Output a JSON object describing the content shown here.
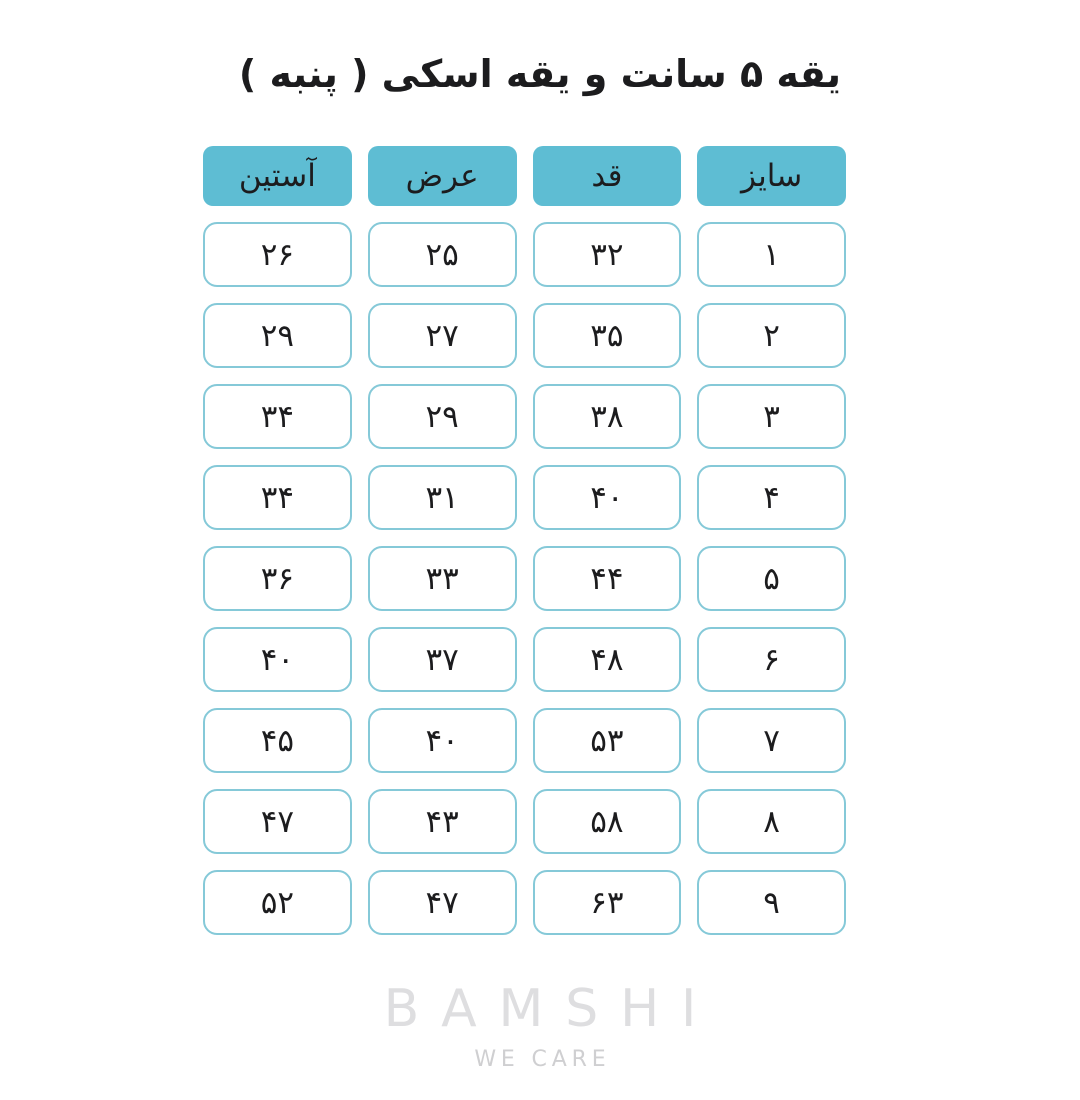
{
  "page": {
    "title": "یقه ۵ سانت و یقه اسکی ( پنبه )",
    "background_color": "#ffffff",
    "text_color": "#1c1c1e"
  },
  "table": {
    "direction": "rtl",
    "header_bg_color": "#5EBDD3",
    "cell_border_color": "#85C9D8",
    "headers": [
      {
        "key": "size",
        "label": "سایز"
      },
      {
        "key": "length",
        "label": "قد"
      },
      {
        "key": "width",
        "label": "عرض"
      },
      {
        "key": "sleeve",
        "label": "آستین"
      }
    ],
    "rows": [
      {
        "size": "۱",
        "length": "۳۲",
        "width": "۲۵",
        "sleeve": "۲۶"
      },
      {
        "size": "۲",
        "length": "۳۵",
        "width": "۲۷",
        "sleeve": "۲۹"
      },
      {
        "size": "۳",
        "length": "۳۸",
        "width": "۲۹",
        "sleeve": "۳۴"
      },
      {
        "size": "۴",
        "length": "۴۰",
        "width": "۳۱",
        "sleeve": "۳۴"
      },
      {
        "size": "۵",
        "length": "۴۴",
        "width": "۳۳",
        "sleeve": "۳۶"
      },
      {
        "size": "۶",
        "length": "۴۸",
        "width": "۳۷",
        "sleeve": "۴۰"
      },
      {
        "size": "۷",
        "length": "۵۳",
        "width": "۴۰",
        "sleeve": "۴۵"
      },
      {
        "size": "۸",
        "length": "۵۸",
        "width": "۴۳",
        "sleeve": "۴۷"
      },
      {
        "size": "۹",
        "length": "۶۳",
        "width": "۴۷",
        "sleeve": "۵۲"
      }
    ]
  },
  "footer": {
    "brand": "BAMSHI",
    "tagline": "WE CARE"
  }
}
